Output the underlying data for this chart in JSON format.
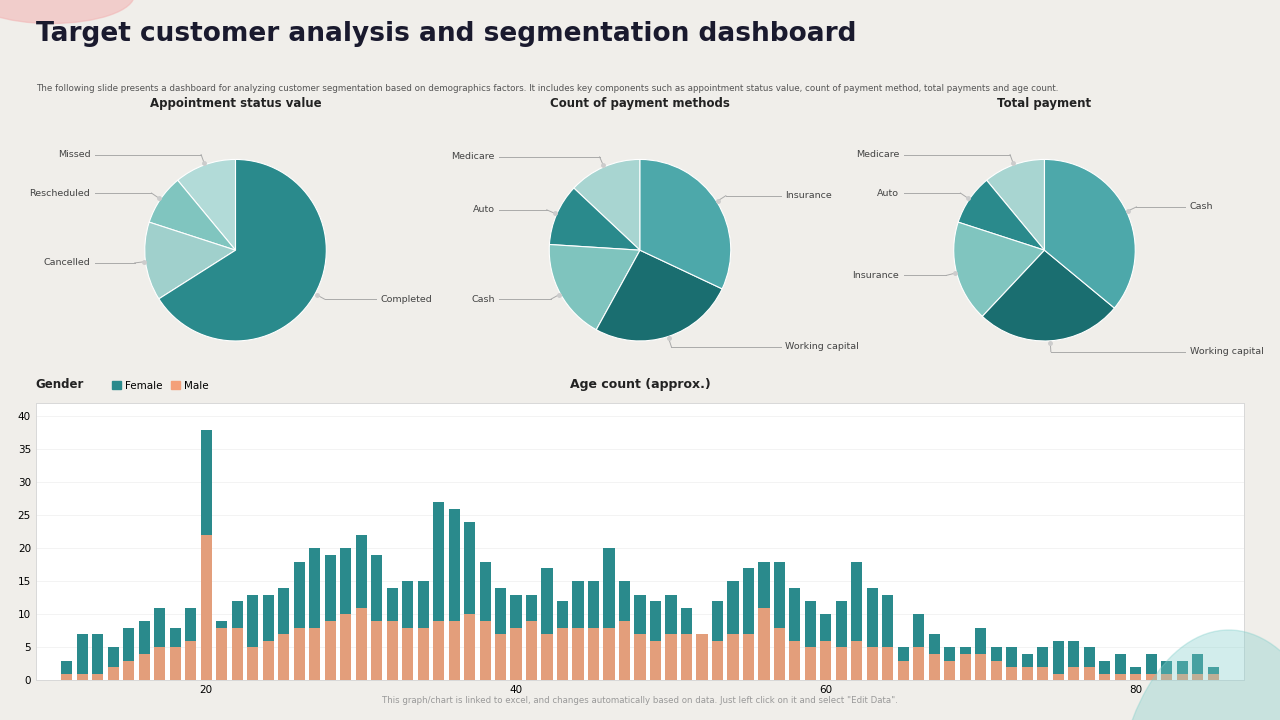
{
  "title": "Target customer analysis and segmentation dashboard",
  "subtitle": "The following slide presents a dashboard for analyzing customer segmentation based on demographics factors. It includes key components such as appointment status value, count of payment method, total payments and age count.",
  "bg_color": "#f0eeea",
  "panel_bg": "#ffffff",
  "title_color": "#1a1a2e",
  "subtitle_color": "#555555",
  "pie1_title": "Appointment status value",
  "pie1_labels": [
    "Missed",
    "Rescheduled",
    "Cancelled",
    "Completed"
  ],
  "pie1_sizes": [
    11,
    9,
    14,
    66
  ],
  "pie1_colors": [
    "#b2dbd8",
    "#80c5bf",
    "#a0d0cc",
    "#2a8a8c"
  ],
  "pie1_label_sides": [
    "left",
    "left",
    "left",
    "right"
  ],
  "pie2_title": "Count of payment methods",
  "pie2_labels": [
    "Medicare",
    "Auto",
    "Cash",
    "Working capital",
    "Insurance"
  ],
  "pie2_sizes": [
    13,
    11,
    18,
    26,
    32
  ],
  "pie2_colors": [
    "#a8d5d1",
    "#2a8a8c",
    "#7fc4be",
    "#1a6e70",
    "#4da8aa"
  ],
  "pie2_label_sides": [
    "left",
    "left",
    "left",
    "right",
    "right"
  ],
  "pie3_title": "Total payment",
  "pie3_labels": [
    "Medicare",
    "Auto",
    "Insurance",
    "Working capital",
    "Cash"
  ],
  "pie3_sizes": [
    11,
    9,
    18,
    26,
    36
  ],
  "pie3_colors": [
    "#a8d5d1",
    "#2a8a8c",
    "#80c5bf",
    "#1a6e70",
    "#4da8aa"
  ],
  "pie3_label_sides": [
    "left",
    "left",
    "left",
    "right",
    "right"
  ],
  "bar_title": "Age count (approx.)",
  "bar_female_color": "#2a8a8c",
  "bar_male_color": "#f4a07a",
  "bar_ages": [
    11,
    12,
    13,
    14,
    15,
    16,
    17,
    18,
    19,
    20,
    21,
    22,
    23,
    24,
    25,
    26,
    27,
    28,
    29,
    30,
    31,
    32,
    33,
    34,
    35,
    36,
    37,
    38,
    39,
    40,
    41,
    42,
    43,
    44,
    45,
    46,
    47,
    48,
    49,
    50,
    51,
    52,
    53,
    54,
    55,
    56,
    57,
    58,
    59,
    60,
    61,
    62,
    63,
    64,
    65,
    66,
    67,
    68,
    69,
    70,
    71,
    72,
    73,
    74,
    75,
    76,
    77,
    78,
    79,
    80,
    81,
    82,
    83,
    84,
    85
  ],
  "bar_female": [
    3,
    7,
    7,
    5,
    8,
    9,
    11,
    8,
    11,
    38,
    9,
    12,
    13,
    13,
    14,
    18,
    20,
    19,
    20,
    22,
    19,
    14,
    15,
    15,
    27,
    26,
    24,
    18,
    14,
    13,
    13,
    17,
    12,
    15,
    15,
    20,
    15,
    13,
    12,
    13,
    11,
    7,
    12,
    15,
    17,
    18,
    18,
    14,
    12,
    10,
    12,
    18,
    14,
    13,
    5,
    10,
    7,
    5,
    5,
    8,
    5,
    5,
    4,
    5,
    6,
    6,
    5,
    3,
    4,
    2,
    4,
    3,
    3,
    4,
    2
  ],
  "bar_male": [
    1,
    1,
    1,
    2,
    3,
    4,
    5,
    5,
    6,
    22,
    8,
    8,
    5,
    6,
    7,
    8,
    8,
    9,
    10,
    11,
    9,
    9,
    8,
    8,
    9,
    9,
    10,
    9,
    7,
    8,
    9,
    7,
    8,
    8,
    8,
    8,
    9,
    7,
    6,
    7,
    7,
    7,
    6,
    7,
    7,
    11,
    8,
    6,
    5,
    6,
    5,
    6,
    5,
    5,
    3,
    5,
    4,
    3,
    4,
    4,
    3,
    2,
    2,
    2,
    1,
    2,
    2,
    1,
    1,
    1,
    1,
    1,
    1,
    1,
    1
  ],
  "bar_yticks": [
    0,
    5,
    10,
    15,
    20,
    25,
    30,
    35,
    40
  ],
  "bar_xticks": [
    20,
    40,
    60,
    80
  ],
  "footer": "This graph/chart is linked to excel, and changes automatically based on data. Just left click on it and select \"Edit Data\".",
  "footer_color": "#999999",
  "accent_pink_color": "#f2b3b3",
  "accent_teal_color": "#7ececa"
}
